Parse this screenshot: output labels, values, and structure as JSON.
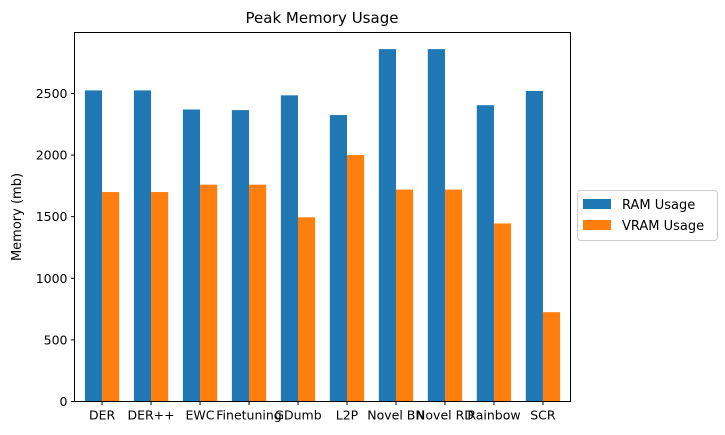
{
  "chart_data": {
    "type": "bar",
    "title": "Peak Memory Usage",
    "xlabel": "",
    "ylabel": "Memory (mb)",
    "ylim": [
      0,
      2995
    ],
    "yticks": [
      0,
      500,
      1000,
      1500,
      2000,
      2500
    ],
    "categories": [
      "DER",
      "DER++",
      "EWC",
      "Finetuning",
      "GDumb",
      "L2P",
      "Novel BN",
      "Novel RD",
      "Rainbow",
      "SCR"
    ],
    "series": [
      {
        "name": "RAM Usage",
        "color": "#1f77b4",
        "values": [
          2525,
          2525,
          2370,
          2365,
          2485,
          2325,
          2860,
          2860,
          2405,
          2520
        ]
      },
      {
        "name": "VRAM Usage",
        "color": "#ff7f0e",
        "values": [
          1700,
          1700,
          1760,
          1760,
          1495,
          2000,
          1720,
          1720,
          1445,
          725
        ]
      }
    ],
    "legend_position": "center-right",
    "grid": false
  }
}
